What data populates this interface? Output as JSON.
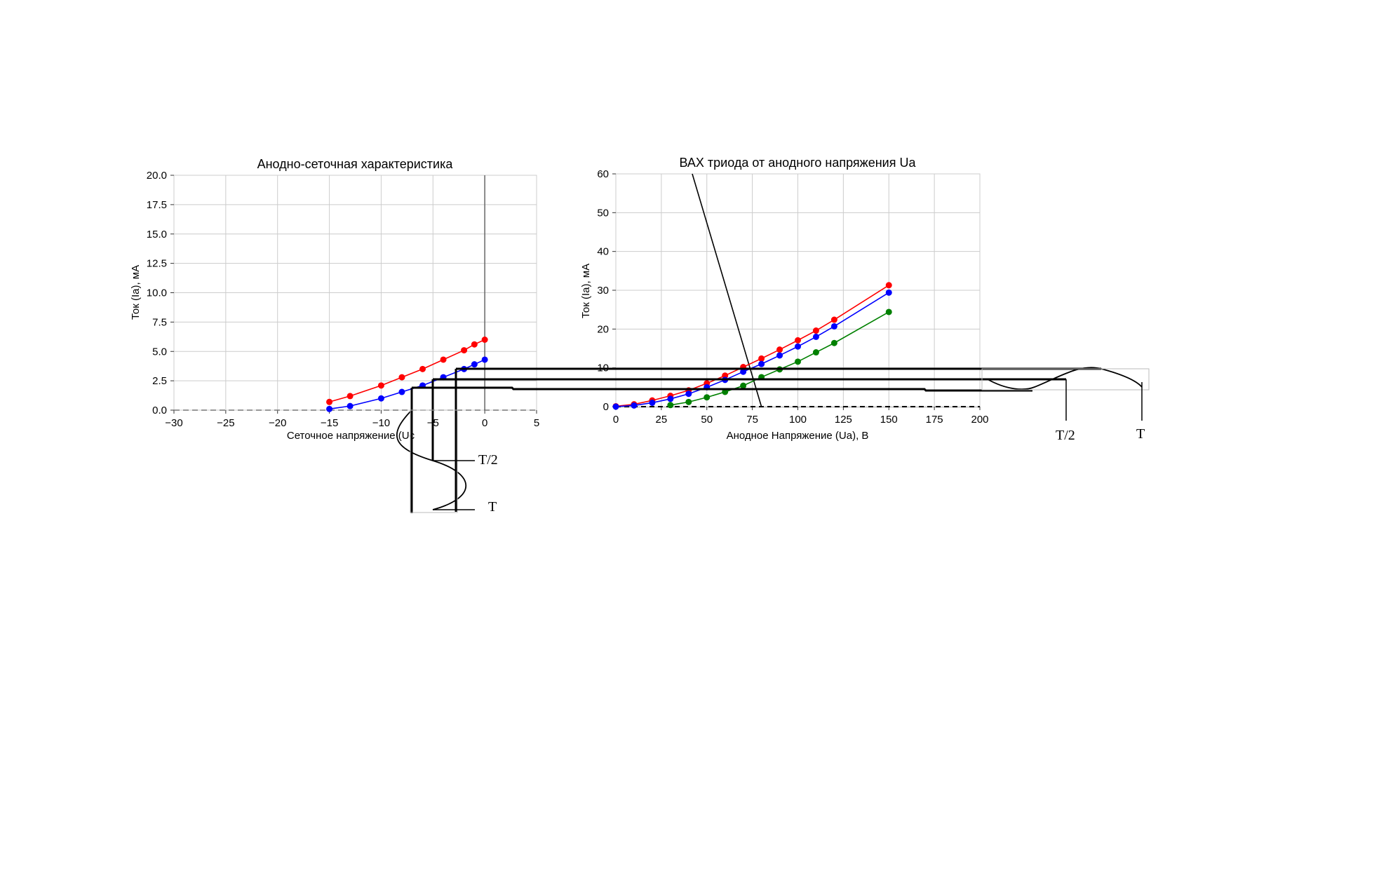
{
  "chart_data": [
    {
      "type": "line",
      "title": "Анодно-сеточная характеристика",
      "xlabel": "Сеточное напряжение (Uc",
      "ylabel": "Ток (Ia), мА",
      "xlim": [
        -30,
        5
      ],
      "ylim": [
        0,
        20
      ],
      "xticks": [
        "−30",
        "−25",
        "−20",
        "−15",
        "−10",
        "−5",
        "0",
        "5"
      ],
      "yticks": [
        "0.0",
        "2.5",
        "5.0",
        "7.5",
        "10.0",
        "12.5",
        "15.0",
        "17.5",
        "20.0"
      ],
      "grid": true,
      "series": [
        {
          "color": "#ff0000",
          "x": [
            -15,
            -13,
            -10,
            -8,
            -6,
            -4,
            -2,
            -1,
            0
          ],
          "y": [
            0.7,
            1.2,
            2.1,
            2.8,
            3.5,
            4.3,
            5.1,
            5.6,
            6.0
          ]
        },
        {
          "color": "#0000ff",
          "x": [
            -15,
            -13,
            -10,
            -8,
            -6,
            -4,
            -2,
            -1,
            0
          ],
          "y": [
            0.1,
            0.35,
            1.0,
            1.55,
            2.1,
            2.8,
            3.5,
            3.9,
            4.3
          ]
        }
      ],
      "dashed_zero_line": true,
      "vertical_line_at_x": 0
    },
    {
      "type": "line",
      "title": "ВАХ триода от анодного напряжения Ua",
      "xlabel": "Анодное Напряжение (Ua), В",
      "ylabel": "Ток (Ia), мА",
      "xlim": [
        0,
        200
      ],
      "ylim": [
        0,
        60
      ],
      "xticks": [
        "0",
        "25",
        "50",
        "75",
        "100",
        "125",
        "150",
        "175",
        "200"
      ],
      "yticks": [
        "0",
        "10",
        "20",
        "30",
        "40",
        "50",
        "60"
      ],
      "grid": true,
      "series": [
        {
          "color": "#ff0000",
          "x": [
            0,
            10,
            20,
            30,
            40,
            50,
            60,
            70,
            80,
            90,
            100,
            110,
            120,
            150
          ],
          "y": [
            0.1,
            0.6,
            1.6,
            2.8,
            4.2,
            6.0,
            8.0,
            10.2,
            12.4,
            14.7,
            17.1,
            19.6,
            22.4,
            31.3
          ]
        },
        {
          "color": "#0000ff",
          "x": [
            0,
            10,
            20,
            30,
            40,
            50,
            60,
            70,
            80,
            90,
            100,
            110,
            120,
            150
          ],
          "y": [
            0.0,
            0.3,
            1.0,
            2.0,
            3.3,
            5.0,
            6.9,
            9.0,
            11.0,
            13.2,
            15.5,
            18.0,
            20.7,
            29.4
          ]
        },
        {
          "color": "#008000",
          "x": [
            30,
            40,
            50,
            60,
            70,
            80,
            90,
            100,
            110,
            120,
            150
          ],
          "y": [
            0.4,
            1.2,
            2.4,
            3.8,
            5.4,
            7.6,
            9.6,
            11.6,
            14.0,
            16.4,
            24.4
          ]
        }
      ],
      "load_line": {
        "x": [
          42,
          80
        ],
        "y": [
          60,
          0
        ]
      },
      "dashed_zero_line": true
    }
  ],
  "annotations": {
    "left_half_period": "T/2",
    "left_period": "T",
    "right_half_period": "T/2",
    "right_period": "T"
  }
}
